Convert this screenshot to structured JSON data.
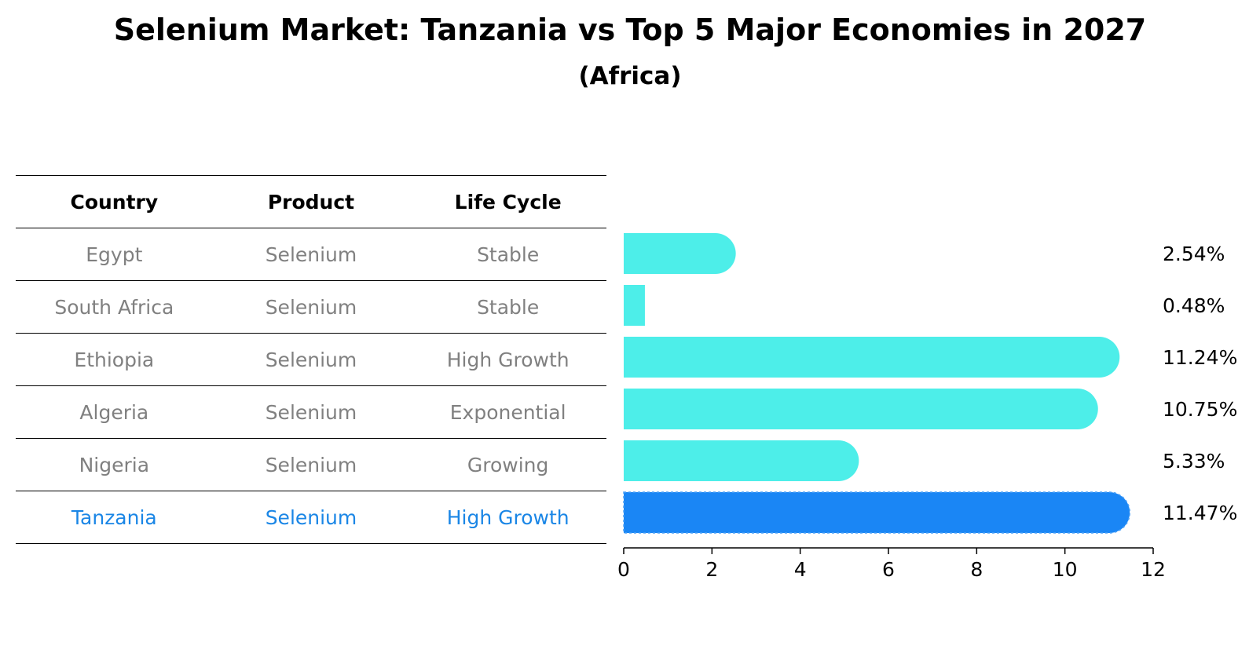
{
  "header": {
    "title": "Selenium Market: Tanzania vs Top 5 Major Economies in 2027",
    "subtitle": "(Africa)"
  },
  "table": {
    "columns": [
      "Country",
      "Product",
      "Life Cycle"
    ],
    "rows": [
      {
        "country": "Egypt",
        "product": "Selenium",
        "life_cycle": "Stable"
      },
      {
        "country": "South Africa",
        "product": "Selenium",
        "life_cycle": "Stable"
      },
      {
        "country": "Ethiopia",
        "product": "Selenium",
        "life_cycle": "High Growth"
      },
      {
        "country": "Algeria",
        "product": "Selenium",
        "life_cycle": "Exponential"
      },
      {
        "country": "Nigeria",
        "product": "Selenium",
        "life_cycle": "Growing"
      },
      {
        "country": "Tanzania",
        "product": "Selenium",
        "life_cycle": "High Growth"
      }
    ],
    "highlight_country": "Tanzania"
  },
  "colors": {
    "bar": "#4deee9",
    "highlight_bar": "#1a86f5",
    "highlight_text": "#1a86e6",
    "muted_text": "#808080"
  },
  "chart_data": {
    "type": "bar",
    "orientation": "horizontal",
    "title": "Selenium Market: Tanzania vs Top 5 Major Economies in 2027",
    "subtitle": "(Africa)",
    "categories": [
      "Egypt",
      "South Africa",
      "Ethiopia",
      "Algeria",
      "Nigeria",
      "Tanzania"
    ],
    "values": [
      2.54,
      0.48,
      11.24,
      10.75,
      5.33,
      11.47
    ],
    "value_labels": [
      "2.54%",
      "0.48%",
      "11.24%",
      "10.75%",
      "5.33%",
      "11.47%"
    ],
    "highlight": "Tanzania",
    "xlim": [
      0,
      12
    ],
    "xticks": [
      0,
      2,
      4,
      6,
      8,
      10,
      12
    ],
    "xlabel": "",
    "ylabel": "",
    "grid": false,
    "legend": "none"
  }
}
